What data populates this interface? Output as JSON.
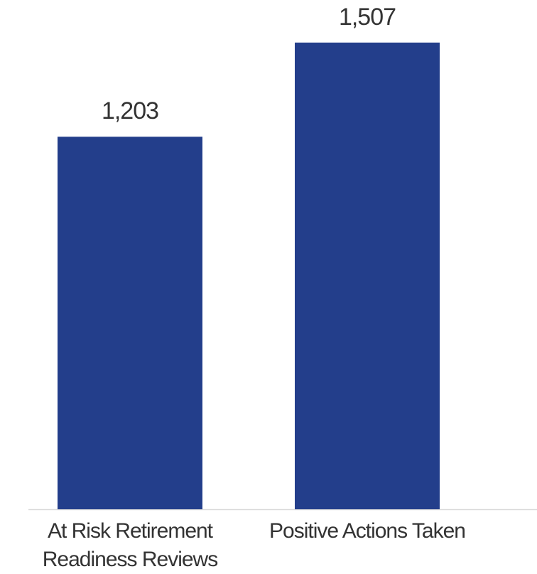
{
  "chart_data": {
    "type": "bar",
    "categories": [
      "At Risk Retirement Readiness Reviews",
      "Positive Actions Taken"
    ],
    "values": [
      1203,
      1507
    ],
    "value_labels": [
      "1,203",
      "1,507"
    ],
    "color": "#233e8b"
  }
}
